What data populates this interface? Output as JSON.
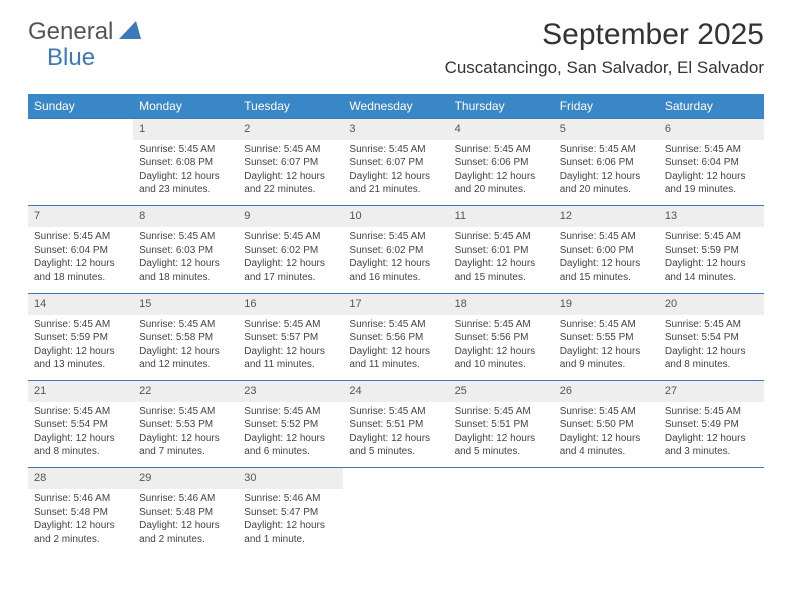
{
  "logo": {
    "main": "General",
    "sub": "Blue"
  },
  "title": {
    "month": "September 2025",
    "location": "Cuscatancingo, San Salvador, El Salvador"
  },
  "colors": {
    "header_bg": "#3a87c7",
    "accent": "#3a7ab8",
    "daynum_bg": "#eeeeee",
    "text": "#333333"
  },
  "weekdays": [
    "Sunday",
    "Monday",
    "Tuesday",
    "Wednesday",
    "Thursday",
    "Friday",
    "Saturday"
  ],
  "weeks": [
    [
      null,
      {
        "n": "1",
        "sr": "5:45 AM",
        "ss": "6:08 PM",
        "dl": "12 hours and 23 minutes."
      },
      {
        "n": "2",
        "sr": "5:45 AM",
        "ss": "6:07 PM",
        "dl": "12 hours and 22 minutes."
      },
      {
        "n": "3",
        "sr": "5:45 AM",
        "ss": "6:07 PM",
        "dl": "12 hours and 21 minutes."
      },
      {
        "n": "4",
        "sr": "5:45 AM",
        "ss": "6:06 PM",
        "dl": "12 hours and 20 minutes."
      },
      {
        "n": "5",
        "sr": "5:45 AM",
        "ss": "6:06 PM",
        "dl": "12 hours and 20 minutes."
      },
      {
        "n": "6",
        "sr": "5:45 AM",
        "ss": "6:04 PM",
        "dl": "12 hours and 19 minutes."
      }
    ],
    [
      {
        "n": "7",
        "sr": "5:45 AM",
        "ss": "6:04 PM",
        "dl": "12 hours and 18 minutes."
      },
      {
        "n": "8",
        "sr": "5:45 AM",
        "ss": "6:03 PM",
        "dl": "12 hours and 18 minutes."
      },
      {
        "n": "9",
        "sr": "5:45 AM",
        "ss": "6:02 PM",
        "dl": "12 hours and 17 minutes."
      },
      {
        "n": "10",
        "sr": "5:45 AM",
        "ss": "6:02 PM",
        "dl": "12 hours and 16 minutes."
      },
      {
        "n": "11",
        "sr": "5:45 AM",
        "ss": "6:01 PM",
        "dl": "12 hours and 15 minutes."
      },
      {
        "n": "12",
        "sr": "5:45 AM",
        "ss": "6:00 PM",
        "dl": "12 hours and 15 minutes."
      },
      {
        "n": "13",
        "sr": "5:45 AM",
        "ss": "5:59 PM",
        "dl": "12 hours and 14 minutes."
      }
    ],
    [
      {
        "n": "14",
        "sr": "5:45 AM",
        "ss": "5:59 PM",
        "dl": "12 hours and 13 minutes."
      },
      {
        "n": "15",
        "sr": "5:45 AM",
        "ss": "5:58 PM",
        "dl": "12 hours and 12 minutes."
      },
      {
        "n": "16",
        "sr": "5:45 AM",
        "ss": "5:57 PM",
        "dl": "12 hours and 11 minutes."
      },
      {
        "n": "17",
        "sr": "5:45 AM",
        "ss": "5:56 PM",
        "dl": "12 hours and 11 minutes."
      },
      {
        "n": "18",
        "sr": "5:45 AM",
        "ss": "5:56 PM",
        "dl": "12 hours and 10 minutes."
      },
      {
        "n": "19",
        "sr": "5:45 AM",
        "ss": "5:55 PM",
        "dl": "12 hours and 9 minutes."
      },
      {
        "n": "20",
        "sr": "5:45 AM",
        "ss": "5:54 PM",
        "dl": "12 hours and 8 minutes."
      }
    ],
    [
      {
        "n": "21",
        "sr": "5:45 AM",
        "ss": "5:54 PM",
        "dl": "12 hours and 8 minutes."
      },
      {
        "n": "22",
        "sr": "5:45 AM",
        "ss": "5:53 PM",
        "dl": "12 hours and 7 minutes."
      },
      {
        "n": "23",
        "sr": "5:45 AM",
        "ss": "5:52 PM",
        "dl": "12 hours and 6 minutes."
      },
      {
        "n": "24",
        "sr": "5:45 AM",
        "ss": "5:51 PM",
        "dl": "12 hours and 5 minutes."
      },
      {
        "n": "25",
        "sr": "5:45 AM",
        "ss": "5:51 PM",
        "dl": "12 hours and 5 minutes."
      },
      {
        "n": "26",
        "sr": "5:45 AM",
        "ss": "5:50 PM",
        "dl": "12 hours and 4 minutes."
      },
      {
        "n": "27",
        "sr": "5:45 AM",
        "ss": "5:49 PM",
        "dl": "12 hours and 3 minutes."
      }
    ],
    [
      {
        "n": "28",
        "sr": "5:46 AM",
        "ss": "5:48 PM",
        "dl": "12 hours and 2 minutes."
      },
      {
        "n": "29",
        "sr": "5:46 AM",
        "ss": "5:48 PM",
        "dl": "12 hours and 2 minutes."
      },
      {
        "n": "30",
        "sr": "5:46 AM",
        "ss": "5:47 PM",
        "dl": "12 hours and 1 minute."
      },
      null,
      null,
      null,
      null
    ]
  ],
  "labels": {
    "sunrise": "Sunrise: ",
    "sunset": "Sunset: ",
    "daylight": "Daylight: "
  }
}
